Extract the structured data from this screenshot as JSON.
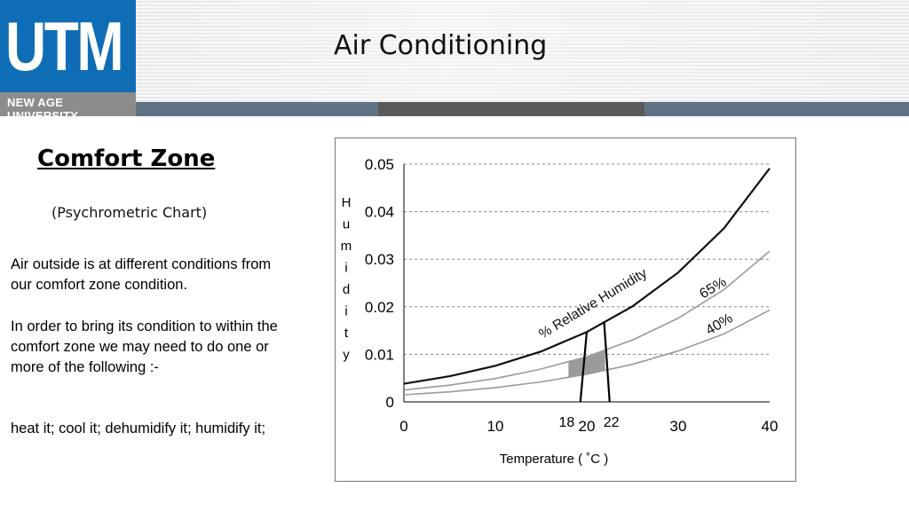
{
  "header": {
    "logo_text": "UTM",
    "logo_subtitle": "NEW AGE UNIVERSITY",
    "title": "Air Conditioning"
  },
  "main": {
    "heading": "Comfort Zone",
    "subheading": "(Psychrometric Chart)",
    "paragraph_1": "Air outside is at different conditions from our comfort zone condition.",
    "paragraph_2": "In order to bring its condition to within the comfort zone we may need to do one or more of the following :-",
    "paragraph_3": "heat it; cool it; dehumidify it; humidify it;"
  },
  "colors": {
    "logo_blue": "#0f6db6",
    "band_slate": "#5f7384",
    "band_dark": "#5a5a5a",
    "comfort_zone_fill": "#9a9a9a"
  },
  "chart_data": {
    "type": "line",
    "xlabel": "Temperature  ( ˚C )",
    "ylabel": "Humidity",
    "xlim": [
      0,
      40
    ],
    "ylim": [
      0,
      0.05
    ],
    "x_ticks": [
      "0",
      "10",
      "20",
      "30",
      "40"
    ],
    "y_ticks": [
      "0",
      "0.01",
      "0.02",
      "0.03",
      "0.04",
      "0.05"
    ],
    "grid": "horizontal dashed",
    "series": [
      {
        "label": "",
        "x": [
          0,
          5,
          10,
          15,
          20,
          25,
          30,
          35,
          40
        ],
        "y": [
          0.0038,
          0.0054,
          0.0076,
          0.0106,
          0.0147,
          0.0201,
          0.0272,
          0.0365,
          0.0491
        ]
      },
      {
        "label": "65%",
        "x": [
          0,
          5,
          10,
          15,
          20,
          25,
          30,
          35,
          40
        ],
        "y": [
          0.0025,
          0.0035,
          0.0049,
          0.0069,
          0.0095,
          0.013,
          0.0176,
          0.0236,
          0.0317
        ]
      },
      {
        "label": "40%",
        "x": [
          0,
          5,
          10,
          15,
          20,
          25,
          30,
          35,
          40
        ],
        "y": [
          0.0015,
          0.0021,
          0.003,
          0.0042,
          0.0058,
          0.0079,
          0.0107,
          0.0143,
          0.0193
        ]
      }
    ],
    "annotations": [
      {
        "text": "% Relative Humidity"
      },
      {
        "text": "65%"
      },
      {
        "text": "40%"
      }
    ],
    "comfort_zone": {
      "temp_range": [
        18,
        22
      ],
      "rh_range": [
        "40%",
        "65%"
      ]
    },
    "vertical_markers": [
      {
        "label": "18",
        "x_top": 20.0,
        "x_bottom": 19.3
      },
      {
        "label": "22",
        "x_top": 21.9,
        "x_bottom": 22.5
      }
    ]
  }
}
